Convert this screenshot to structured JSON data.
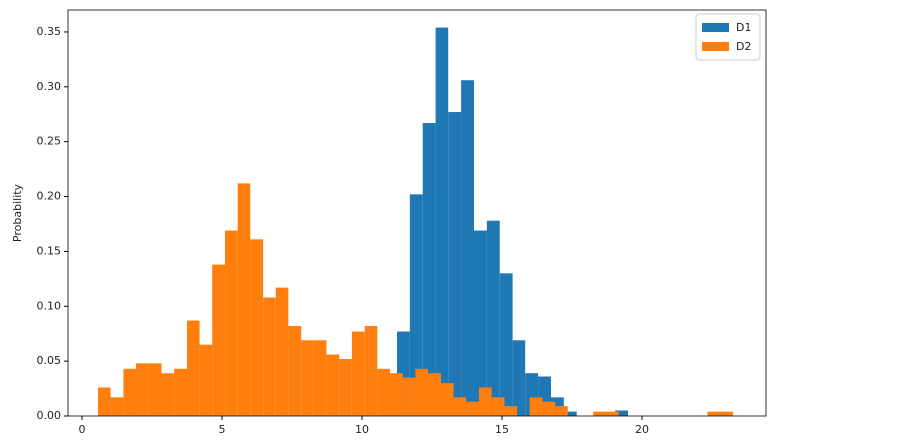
{
  "chart_data": {
    "type": "histogram",
    "ylabel": "Probability",
    "xlim": [
      -0.5,
      24.43
    ],
    "ylim": [
      0,
      0.37
    ],
    "xticks": [
      0,
      5,
      10,
      15,
      20
    ],
    "yticks": [
      {
        "value": 0,
        "label": "0.00"
      },
      0.05,
      {
        "value": 0.1,
        "label": "0.10"
      },
      0.15,
      {
        "value": 0.2,
        "label": "0.20"
      },
      0.25,
      {
        "value": 0.3,
        "label": "0.30"
      },
      0.35
    ],
    "legend": "upper right",
    "series": [
      {
        "name": "D1",
        "color": "#1f77b4",
        "bins": [
          11.25,
          11.71,
          12.17,
          12.63,
          13.08,
          13.54,
          14.0,
          14.46,
          14.92,
          15.38,
          15.83,
          16.29,
          16.75,
          17.21,
          17.67,
          18.13,
          18.58,
          19.04,
          19.5
        ],
        "values": [
          0.077,
          0.202,
          0.267,
          0.354,
          0.277,
          0.306,
          0.169,
          0.178,
          0.13,
          0.069,
          0.039,
          0.036,
          0.017,
          0.004,
          0,
          0,
          0,
          0.005
        ]
      },
      {
        "name": "D2",
        "color": "#ff7f0e",
        "bins": [
          0.57,
          1.02,
          1.48,
          1.93,
          2.38,
          2.84,
          3.29,
          3.75,
          4.2,
          4.65,
          5.11,
          5.56,
          6.01,
          6.47,
          6.92,
          7.37,
          7.83,
          8.28,
          8.73,
          9.19,
          9.64,
          10.1,
          10.55,
          11.0,
          11.46,
          11.91,
          12.36,
          12.82,
          13.27,
          13.72,
          14.18,
          14.63,
          15.09,
          15.54,
          15.99,
          16.45,
          16.9,
          17.35,
          17.81,
          18.26,
          18.71,
          19.17,
          19.62,
          20.07,
          20.53,
          20.98,
          21.43,
          21.89,
          22.34,
          22.79,
          23.25
        ],
        "values": [
          0.026,
          0.017,
          0.043,
          0.048,
          0.048,
          0.039,
          0.043,
          0.087,
          0.065,
          0.138,
          0.169,
          0.212,
          0.161,
          0.108,
          0.117,
          0.082,
          0.069,
          0.069,
          0.056,
          0.052,
          0.077,
          0.082,
          0.043,
          0.039,
          0.035,
          0.043,
          0.039,
          0.03,
          0.017,
          0.013,
          0.026,
          0.017,
          0.009,
          0,
          0.017,
          0.013,
          0.009,
          0,
          0,
          0.004,
          0.004,
          0,
          0,
          0,
          0,
          0,
          0,
          0,
          0.004,
          0.004
        ]
      }
    ]
  }
}
